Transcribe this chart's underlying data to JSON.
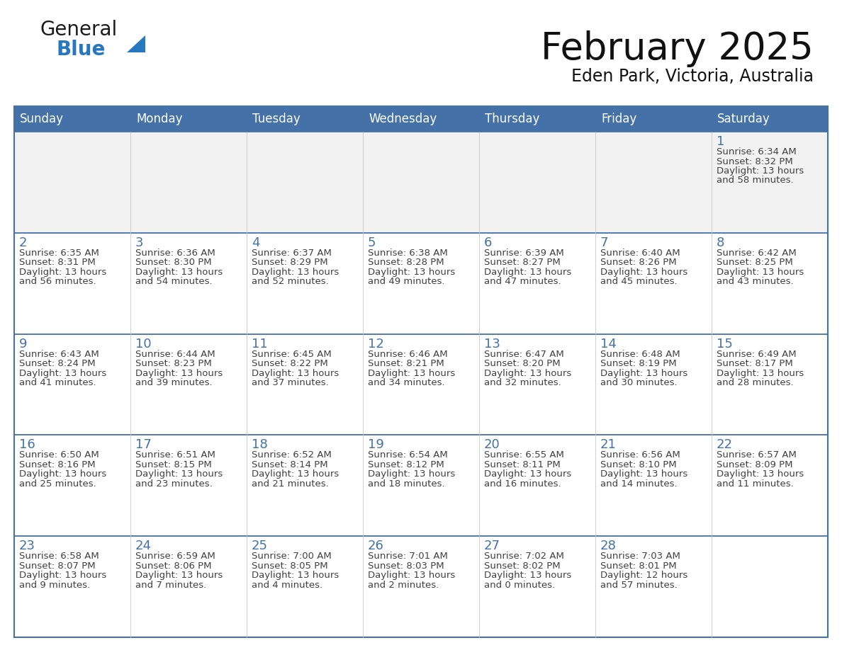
{
  "title": "February 2025",
  "subtitle": "Eden Park, Victoria, Australia",
  "header_bg": "#4472a8",
  "header_text_color": "#ffffff",
  "cell_bg_white": "#ffffff",
  "cell_bg_gray": "#f2f2f2",
  "border_color": "#4472a8",
  "text_color": "#404040",
  "day_number_color": "#4472a8",
  "days_of_week": [
    "Sunday",
    "Monday",
    "Tuesday",
    "Wednesday",
    "Thursday",
    "Friday",
    "Saturday"
  ],
  "weeks": [
    [
      null,
      null,
      null,
      null,
      null,
      null,
      1
    ],
    [
      2,
      3,
      4,
      5,
      6,
      7,
      8
    ],
    [
      9,
      10,
      11,
      12,
      13,
      14,
      15
    ],
    [
      16,
      17,
      18,
      19,
      20,
      21,
      22
    ],
    [
      23,
      24,
      25,
      26,
      27,
      28,
      null
    ]
  ],
  "day_data": {
    "1": {
      "sunrise": "6:34 AM",
      "sunset": "8:32 PM",
      "daylight_hours": 13,
      "daylight_minutes": 58
    },
    "2": {
      "sunrise": "6:35 AM",
      "sunset": "8:31 PM",
      "daylight_hours": 13,
      "daylight_minutes": 56
    },
    "3": {
      "sunrise": "6:36 AM",
      "sunset": "8:30 PM",
      "daylight_hours": 13,
      "daylight_minutes": 54
    },
    "4": {
      "sunrise": "6:37 AM",
      "sunset": "8:29 PM",
      "daylight_hours": 13,
      "daylight_minutes": 52
    },
    "5": {
      "sunrise": "6:38 AM",
      "sunset": "8:28 PM",
      "daylight_hours": 13,
      "daylight_minutes": 49
    },
    "6": {
      "sunrise": "6:39 AM",
      "sunset": "8:27 PM",
      "daylight_hours": 13,
      "daylight_minutes": 47
    },
    "7": {
      "sunrise": "6:40 AM",
      "sunset": "8:26 PM",
      "daylight_hours": 13,
      "daylight_minutes": 45
    },
    "8": {
      "sunrise": "6:42 AM",
      "sunset": "8:25 PM",
      "daylight_hours": 13,
      "daylight_minutes": 43
    },
    "9": {
      "sunrise": "6:43 AM",
      "sunset": "8:24 PM",
      "daylight_hours": 13,
      "daylight_minutes": 41
    },
    "10": {
      "sunrise": "6:44 AM",
      "sunset": "8:23 PM",
      "daylight_hours": 13,
      "daylight_minutes": 39
    },
    "11": {
      "sunrise": "6:45 AM",
      "sunset": "8:22 PM",
      "daylight_hours": 13,
      "daylight_minutes": 37
    },
    "12": {
      "sunrise": "6:46 AM",
      "sunset": "8:21 PM",
      "daylight_hours": 13,
      "daylight_minutes": 34
    },
    "13": {
      "sunrise": "6:47 AM",
      "sunset": "8:20 PM",
      "daylight_hours": 13,
      "daylight_minutes": 32
    },
    "14": {
      "sunrise": "6:48 AM",
      "sunset": "8:19 PM",
      "daylight_hours": 13,
      "daylight_minutes": 30
    },
    "15": {
      "sunrise": "6:49 AM",
      "sunset": "8:17 PM",
      "daylight_hours": 13,
      "daylight_minutes": 28
    },
    "16": {
      "sunrise": "6:50 AM",
      "sunset": "8:16 PM",
      "daylight_hours": 13,
      "daylight_minutes": 25
    },
    "17": {
      "sunrise": "6:51 AM",
      "sunset": "8:15 PM",
      "daylight_hours": 13,
      "daylight_minutes": 23
    },
    "18": {
      "sunrise": "6:52 AM",
      "sunset": "8:14 PM",
      "daylight_hours": 13,
      "daylight_minutes": 21
    },
    "19": {
      "sunrise": "6:54 AM",
      "sunset": "8:12 PM",
      "daylight_hours": 13,
      "daylight_minutes": 18
    },
    "20": {
      "sunrise": "6:55 AM",
      "sunset": "8:11 PM",
      "daylight_hours": 13,
      "daylight_minutes": 16
    },
    "21": {
      "sunrise": "6:56 AM",
      "sunset": "8:10 PM",
      "daylight_hours": 13,
      "daylight_minutes": 14
    },
    "22": {
      "sunrise": "6:57 AM",
      "sunset": "8:09 PM",
      "daylight_hours": 13,
      "daylight_minutes": 11
    },
    "23": {
      "sunrise": "6:58 AM",
      "sunset": "8:07 PM",
      "daylight_hours": 13,
      "daylight_minutes": 9
    },
    "24": {
      "sunrise": "6:59 AM",
      "sunset": "8:06 PM",
      "daylight_hours": 13,
      "daylight_minutes": 7
    },
    "25": {
      "sunrise": "7:00 AM",
      "sunset": "8:05 PM",
      "daylight_hours": 13,
      "daylight_minutes": 4
    },
    "26": {
      "sunrise": "7:01 AM",
      "sunset": "8:03 PM",
      "daylight_hours": 13,
      "daylight_minutes": 2
    },
    "27": {
      "sunrise": "7:02 AM",
      "sunset": "8:02 PM",
      "daylight_hours": 13,
      "daylight_minutes": 0
    },
    "28": {
      "sunrise": "7:03 AM",
      "sunset": "8:01 PM",
      "daylight_hours": 12,
      "daylight_minutes": 57
    }
  },
  "logo_general_color": "#1a1a1a",
  "logo_blue_color": "#2878c0",
  "title_fontsize": 38,
  "subtitle_fontsize": 17,
  "header_fontsize": 12,
  "day_num_fontsize": 13,
  "cell_text_fontsize": 9.5
}
